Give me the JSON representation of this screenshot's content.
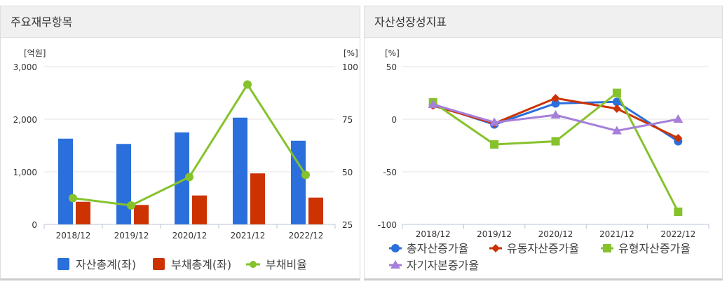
{
  "panels": {
    "left_title": "주요재무항목",
    "right_title": "자산성장성지표"
  },
  "chart_data": [
    {
      "type": "bar+line",
      "categories": [
        "2018/12",
        "2019/12",
        "2020/12",
        "2021/12",
        "2022/12"
      ],
      "y_unit_left": "[억원]",
      "y_unit_right": "[%]",
      "ylim_left": [
        0,
        3000
      ],
      "yticks_left": [
        "0",
        "1,000",
        "2,000",
        "3,000"
      ],
      "ylim_right": [
        25,
        100
      ],
      "yticks_right": [
        "25",
        "50",
        "75",
        "100"
      ],
      "grid": true,
      "legend": "bottom",
      "series": [
        {
          "name": "자산총계(좌)",
          "type": "bar",
          "axis": "left",
          "color": "#2a6fdb",
          "values": [
            1630,
            1530,
            1750,
            2030,
            1590
          ]
        },
        {
          "name": "부채총계(좌)",
          "type": "bar",
          "axis": "left",
          "color": "#cc3300",
          "values": [
            430,
            370,
            550,
            970,
            510
          ]
        },
        {
          "name": "부채비율",
          "type": "line",
          "axis": "right",
          "color": "#86c22b",
          "values": [
            37.5,
            34,
            47.5,
            91.5,
            48.5
          ]
        }
      ]
    },
    {
      "type": "line",
      "categories": [
        "2018/12",
        "2019/12",
        "2020/12",
        "2021/12",
        "2022/12"
      ],
      "y_unit": "[%]",
      "ylim": [
        -100,
        50
      ],
      "yticks": [
        "-100",
        "-50",
        "0",
        "50"
      ],
      "grid": true,
      "legend": "bottom",
      "series": [
        {
          "name": "총자산증가율",
          "marker": "circle",
          "color": "#2a6fdb",
          "values": [
            14,
            -5,
            15,
            16.5,
            -21
          ]
        },
        {
          "name": "유동자산증가율",
          "marker": "diamond",
          "color": "#cc3300",
          "values": [
            13,
            -4,
            20,
            10,
            -18
          ]
        },
        {
          "name": "유형자산증가율",
          "marker": "square",
          "color": "#86c22b",
          "values": [
            16,
            -24,
            -21,
            25,
            -88
          ]
        },
        {
          "name": "자기자본증가율",
          "marker": "triangle",
          "color": "#a57fd9",
          "values": [
            14,
            -3,
            4,
            -11,
            0
          ]
        }
      ]
    }
  ]
}
